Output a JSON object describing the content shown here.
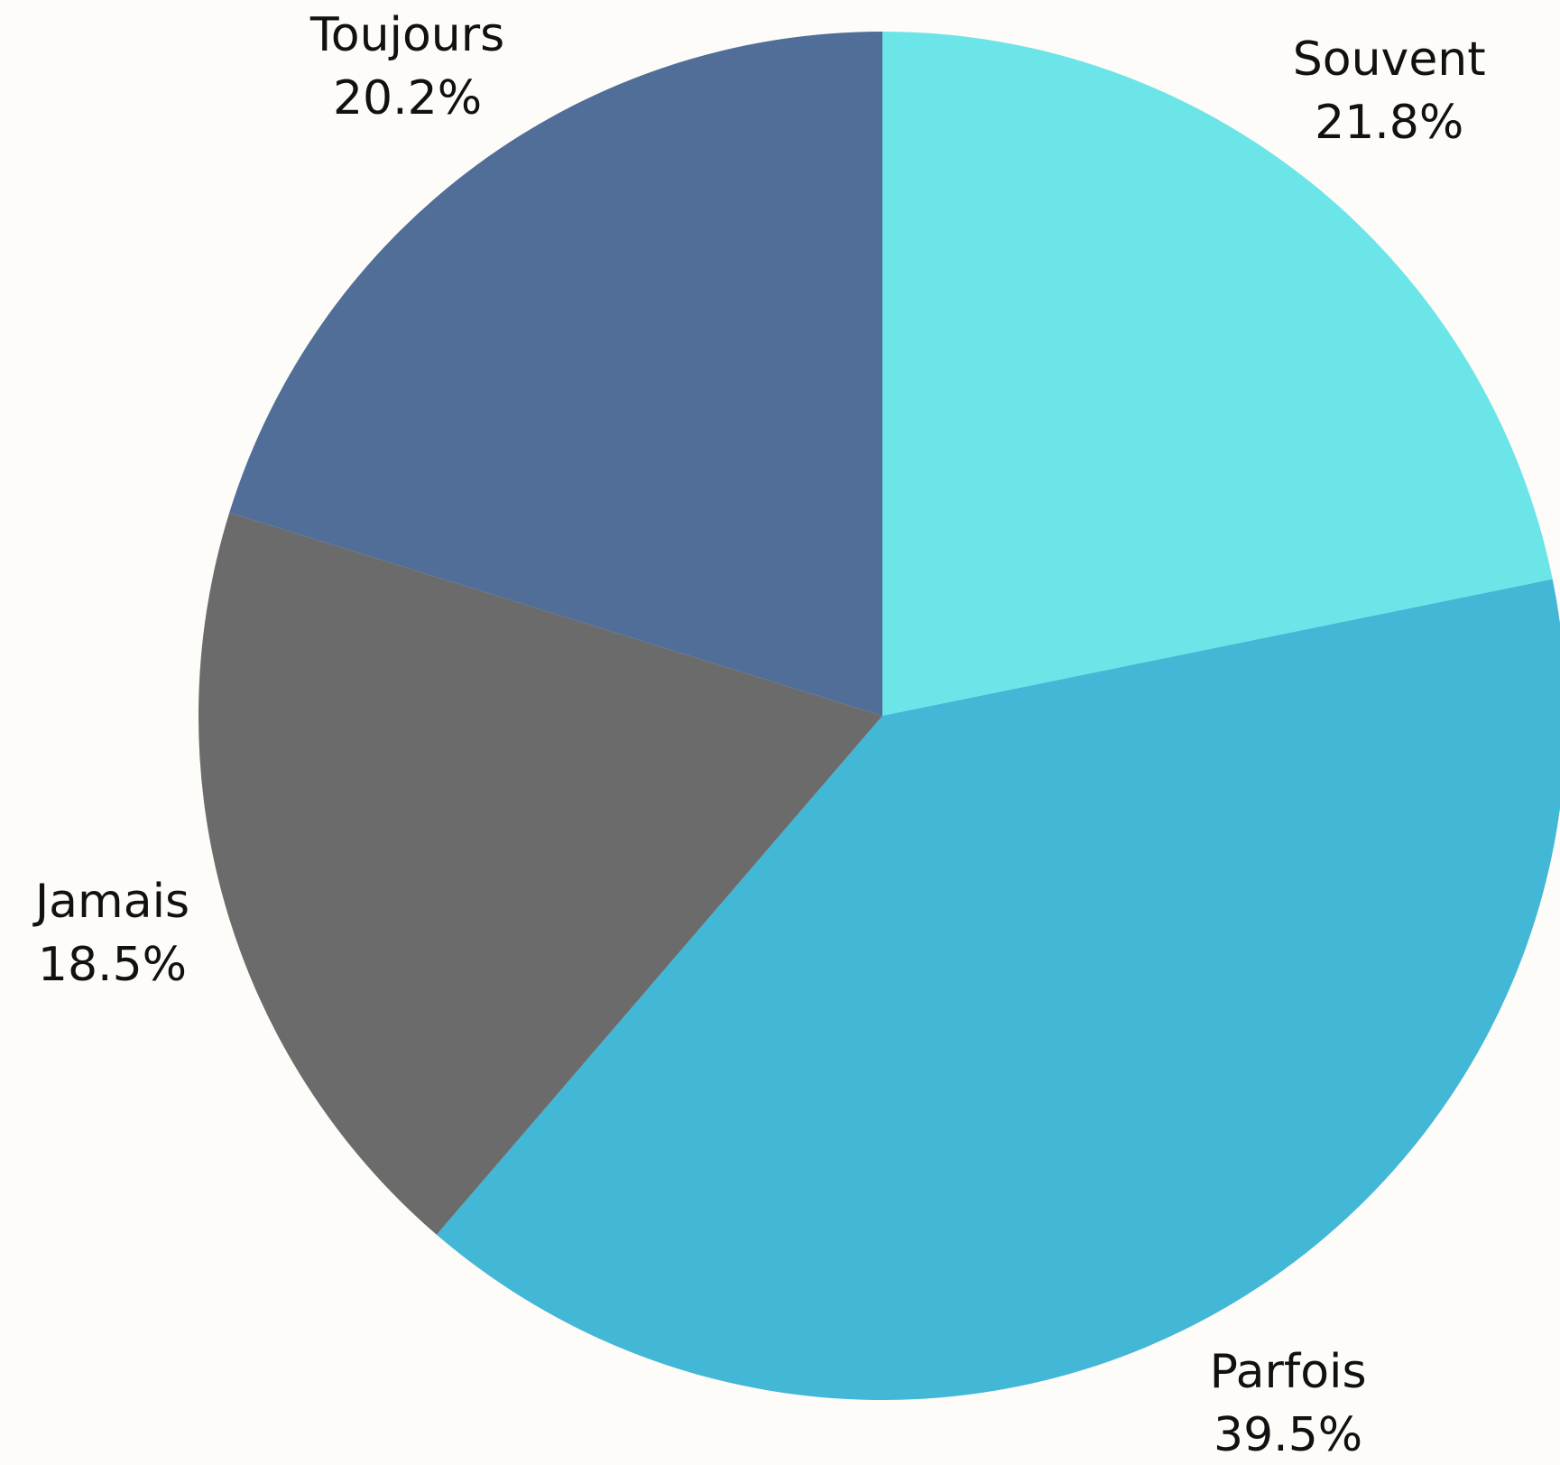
{
  "chart_data": {
    "type": "pie",
    "categories": [
      "Souvent",
      "Parfois",
      "Jamais",
      "Toujours"
    ],
    "values": [
      21.8,
      39.5,
      18.5,
      20.2
    ],
    "value_labels": [
      "21.8%",
      "39.5%",
      "18.5%",
      "20.2%"
    ],
    "colors": [
      "#6ce5e8",
      "#42b7d6",
      "#6b6b6b",
      "#506e98"
    ]
  }
}
